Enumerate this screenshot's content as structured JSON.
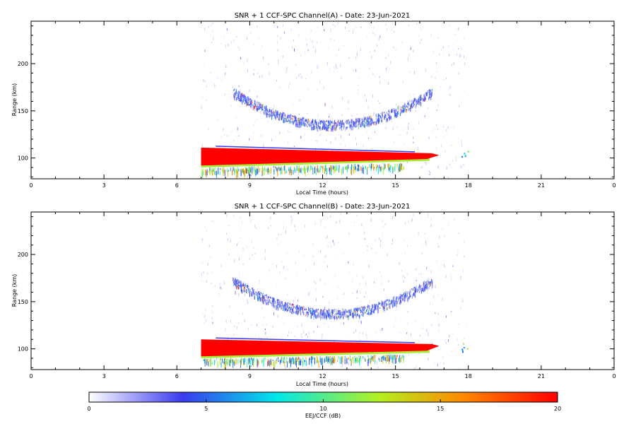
{
  "chart_data": [
    {
      "type": "heatmap",
      "title": "SNR + 1 CCF-SPC Channel(A) - Date: 23-Jun-2021",
      "xlabel": "Local Time (hours)",
      "ylabel": "Range (km)",
      "xlim": [
        0,
        24
      ],
      "ylim": [
        78,
        245
      ],
      "x_ticks": [
        "0",
        "3",
        "6",
        "9",
        "12",
        "15",
        "18",
        "21",
        "0"
      ],
      "y_ticks": [
        100,
        150,
        200
      ],
      "features": {
        "strong_layer": {
          "t_start": 7.0,
          "t_end": 16.8,
          "range_top_start": 111,
          "range_top_end": 105,
          "range_bottom_start": 90,
          "range_bottom_end": 96,
          "value_db": 20
        },
        "weak_arc": {
          "t_start": 8.3,
          "t_end": 16.5,
          "range_edge": 170,
          "range_center": 135,
          "value_db": 4
        },
        "noise_region": {
          "t_start": 7.0,
          "t_end": 17.9
        }
      }
    },
    {
      "type": "heatmap",
      "title": "SNR + 1 CCF-SPC Channel(B) - Date: 23-Jun-2021",
      "xlabel": "Local Time (hours)",
      "ylabel": "Range (km)",
      "xlim": [
        0,
        24
      ],
      "ylim": [
        78,
        245
      ],
      "x_ticks": [
        "0",
        "3",
        "6",
        "9",
        "12",
        "15",
        "18",
        "21",
        "0"
      ],
      "y_ticks": [
        100,
        150,
        200
      ],
      "features": {
        "strong_layer": {
          "t_start": 7.0,
          "t_end": 16.8,
          "range_top_start": 110,
          "range_top_end": 105,
          "range_bottom_start": 90,
          "range_bottom_end": 95,
          "value_db": 20
        },
        "weak_arc": {
          "t_start": 8.3,
          "t_end": 16.5,
          "range_edge": 172,
          "range_center": 137,
          "value_db": 4
        },
        "noise_region": {
          "t_start": 7.0,
          "t_end": 17.9
        }
      }
    }
  ],
  "colorbar": {
    "label": "EEJ/CCF (dB)",
    "min": 0,
    "max": 20,
    "ticks": [
      "0",
      "5",
      "10",
      "15",
      "20"
    ],
    "colors": [
      "#ffffff",
      "#3a3af0",
      "#00e8e8",
      "#b4f020",
      "#ff8800",
      "#ff0000"
    ]
  }
}
